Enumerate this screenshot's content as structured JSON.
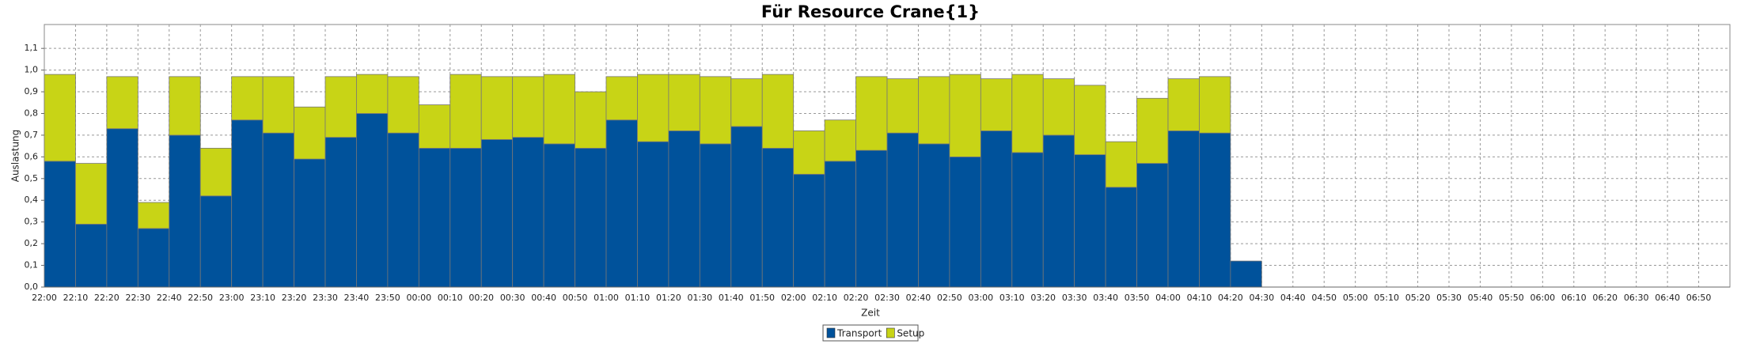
{
  "chart_data": {
    "type": "stacked_bar",
    "title": "Für Resource Crane{1}",
    "x_label": "Zeit",
    "y_label": "Auslastung",
    "categories": [
      "22:00",
      "22:10",
      "22:20",
      "22:30",
      "22:40",
      "22:50",
      "23:00",
      "23:10",
      "23:20",
      "23:30",
      "23:40",
      "23:50",
      "00:00",
      "00:10",
      "00:20",
      "00:30",
      "00:40",
      "00:50",
      "01:00",
      "01:10",
      "01:20",
      "01:30",
      "01:40",
      "01:50",
      "02:00",
      "02:10",
      "02:20",
      "02:30",
      "02:40",
      "02:50",
      "03:00",
      "03:10",
      "03:20",
      "03:30",
      "03:40",
      "03:50",
      "04:00",
      "04:10",
      "04:20",
      "04:30",
      "04:40",
      "04:50",
      "05:00",
      "05:10",
      "05:20",
      "05:30",
      "05:40",
      "05:50",
      "06:00",
      "06:10",
      "06:20",
      "06:30",
      "06:40",
      "06:50"
    ],
    "series": [
      {
        "name": "Transport",
        "color": "#00529b",
        "values": [
          0.58,
          0.29,
          0.73,
          0.27,
          0.7,
          0.42,
          0.77,
          0.71,
          0.59,
          0.69,
          0.8,
          0.71,
          0.64,
          0.64,
          0.68,
          0.69,
          0.66,
          0.64,
          0.77,
          0.67,
          0.72,
          0.66,
          0.74,
          0.64,
          0.52,
          0.58,
          0.63,
          0.71,
          0.66,
          0.6,
          0.72,
          0.62,
          0.7,
          0.61,
          0.46,
          0.57,
          0.72,
          0.71,
          0.12,
          null,
          null,
          null,
          null,
          null,
          null,
          null,
          null,
          null,
          null,
          null,
          null,
          null,
          null,
          null
        ]
      },
      {
        "name": "Setup",
        "color": "#c8d416",
        "values": [
          0.4,
          0.28,
          0.24,
          0.12,
          0.27,
          0.22,
          0.2,
          0.26,
          0.24,
          0.28,
          0.18,
          0.26,
          0.2,
          0.34,
          0.29,
          0.28,
          0.32,
          0.26,
          0.2,
          0.31,
          0.26,
          0.31,
          0.22,
          0.34,
          0.2,
          0.19,
          0.34,
          0.25,
          0.31,
          0.38,
          0.24,
          0.36,
          0.26,
          0.32,
          0.21,
          0.3,
          0.24,
          0.26,
          0,
          null,
          null,
          null,
          null,
          null,
          null,
          null,
          null,
          null,
          null,
          null,
          null,
          null,
          null,
          null
        ]
      }
    ],
    "ylim": [
      0,
      1.21
    ],
    "yticks": [
      {
        "value": 0,
        "label": "0,0"
      },
      {
        "value": 0.1,
        "label": "0,1"
      },
      {
        "value": 0.2,
        "label": "0,2"
      },
      {
        "value": 0.3,
        "label": "0,3"
      },
      {
        "value": 0.4,
        "label": "0,4"
      },
      {
        "value": 0.5,
        "label": "0,5"
      },
      {
        "value": 0.6,
        "label": "0,6"
      },
      {
        "value": 0.7,
        "label": "0,7"
      },
      {
        "value": 0.8,
        "label": "0,8"
      },
      {
        "value": 0.9,
        "label": "0,9"
      },
      {
        "value": 1.0,
        "label": "1,0"
      },
      {
        "value": 1.1,
        "label": "1,1"
      }
    ],
    "grid": true,
    "legend": "bottom"
  }
}
